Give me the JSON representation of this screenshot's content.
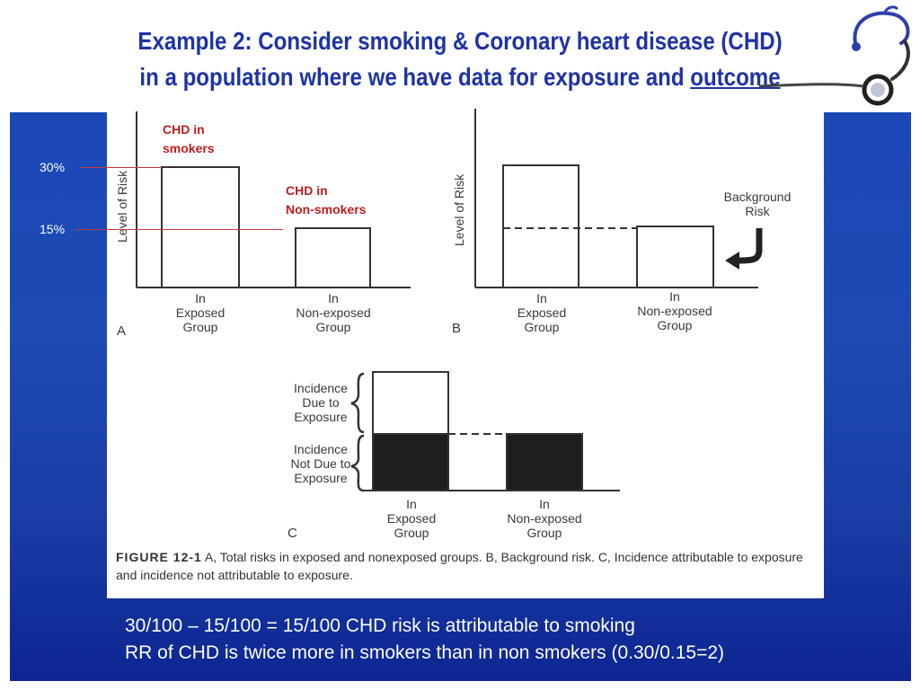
{
  "title": {
    "line1": "Example 2: Consider smoking & Coronary heart disease (CHD)",
    "line2_prefix": "in a population where we have data for exposure and ",
    "line2_underlined": "outcome"
  },
  "annotations": {
    "pct_30": "30%",
    "pct_15": "15%",
    "chd_smokers_line1": "CHD in",
    "chd_smokers_line2": "smokers",
    "chd_nonsmokers_line1": "CHD in",
    "chd_nonsmokers_line2": "Non-smokers"
  },
  "figure": {
    "y_axis_label": "Level of Risk",
    "panel_a_letter": "A",
    "panel_b_letter": "B",
    "panel_c_letter": "C",
    "exposed_group_lines": [
      "In",
      "Exposed",
      "Group"
    ],
    "nonexposed_group_lines": [
      "In",
      "Non-exposed",
      "Group"
    ],
    "background_risk_lines": [
      "Background",
      "Risk"
    ],
    "incidence_due_lines": [
      "Incidence",
      "Due to",
      "Exposure"
    ],
    "incidence_not_due_lines": [
      "Incidence",
      "Not Due to",
      "Exposure"
    ],
    "caption_label": "FIGURE 12-1",
    "caption_text": " A, Total risks in exposed and nonexposed groups. B, Background risk. C, Incidence attributable to exposure and incidence not attributable to exposure.",
    "risk_exposed": 0.3,
    "risk_nonexposed": 0.15
  },
  "bottom_text": {
    "line1": "30/100 – 15/100 = 15/100 CHD risk is attributable to smoking",
    "line2": "RR of CHD is twice more in smokers than in non smokers (0.30/0.15=2)"
  },
  "colors": {
    "title": "#1f33a5",
    "panel_blue": "#1b49b8",
    "annotation_red": "#c01c1c"
  },
  "icons": [
    "stethoscope-icon",
    "curved-arrow-icon",
    "brace-icon"
  ]
}
